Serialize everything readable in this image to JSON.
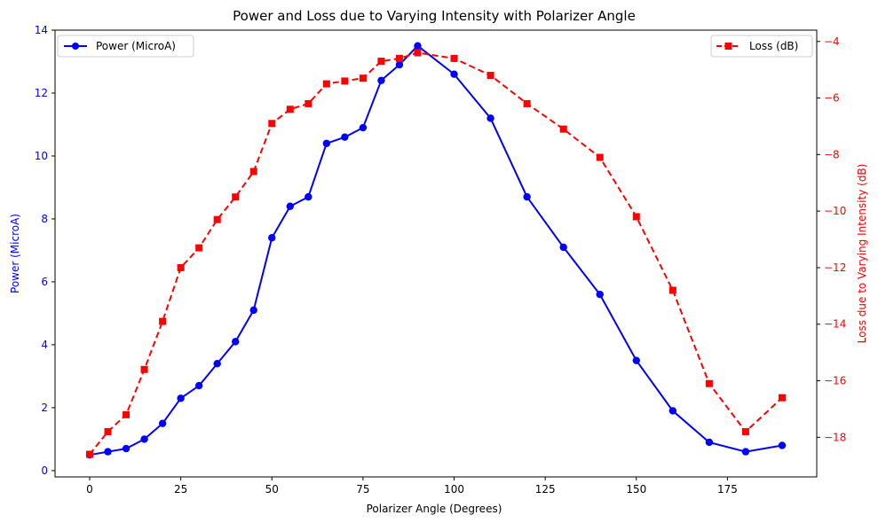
{
  "chart_data": {
    "type": "line",
    "title": "Power and Loss due to Varying Intensity with Polarizer Angle",
    "xlabel": "Polarizer Angle (Degrees)",
    "ylabel_left": "Power (MicroA)",
    "ylabel_right": "Loss due to Varying Intensity (dB)",
    "xlim": [
      -9.5,
      199.5
    ],
    "ylim_left": [
      -0.2,
      14.0
    ],
    "ylim_right": [
      -19.4,
      -3.6
    ],
    "x_ticks": [
      0,
      25,
      50,
      75,
      100,
      125,
      150,
      175
    ],
    "y_ticks_left": [
      0,
      2,
      4,
      6,
      8,
      10,
      12,
      14
    ],
    "y_ticks_right": [
      -18,
      -16,
      -14,
      -12,
      -10,
      -8,
      -6,
      -4
    ],
    "grid": false,
    "colors": {
      "left_axis": "#0000ff",
      "right_axis": "#ff0000"
    },
    "series": [
      {
        "name": "Power (MicroA)",
        "axis": "left",
        "color": "#0000ff",
        "marker": "circle",
        "linestyle": "solid",
        "legend_position": "top-left",
        "x": [
          0,
          5,
          10,
          15,
          20,
          25,
          30,
          35,
          40,
          45,
          50,
          55,
          60,
          65,
          70,
          75,
          80,
          85,
          90,
          100,
          110,
          120,
          130,
          140,
          150,
          160,
          170,
          180,
          190
        ],
        "values": [
          0.5,
          0.6,
          0.7,
          1.0,
          1.5,
          2.3,
          2.7,
          3.4,
          4.1,
          5.1,
          7.4,
          8.4,
          8.7,
          10.4,
          10.6,
          10.9,
          12.4,
          12.9,
          13.5,
          12.6,
          11.2,
          8.7,
          7.1,
          5.6,
          3.5,
          1.9,
          0.9,
          0.6,
          0.8
        ]
      },
      {
        "name": "Loss (dB)",
        "axis": "right",
        "color": "#ff0000",
        "marker": "square",
        "linestyle": "dashed",
        "legend_position": "top-right",
        "x": [
          0,
          5,
          10,
          15,
          20,
          25,
          30,
          35,
          40,
          45,
          50,
          55,
          60,
          65,
          70,
          75,
          80,
          85,
          90,
          100,
          110,
          120,
          130,
          140,
          150,
          160,
          170,
          180,
          190
        ],
        "values": [
          -18.6,
          -17.8,
          -17.2,
          -15.6,
          -13.9,
          -12.0,
          -11.3,
          -10.3,
          -9.5,
          -8.6,
          -6.9,
          -6.4,
          -6.2,
          -5.5,
          -5.4,
          -5.3,
          -4.7,
          -4.6,
          -4.4,
          -4.6,
          -5.2,
          -6.2,
          -7.1,
          -8.1,
          -10.2,
          -12.8,
          -16.1,
          -17.8,
          -16.6
        ]
      }
    ]
  }
}
